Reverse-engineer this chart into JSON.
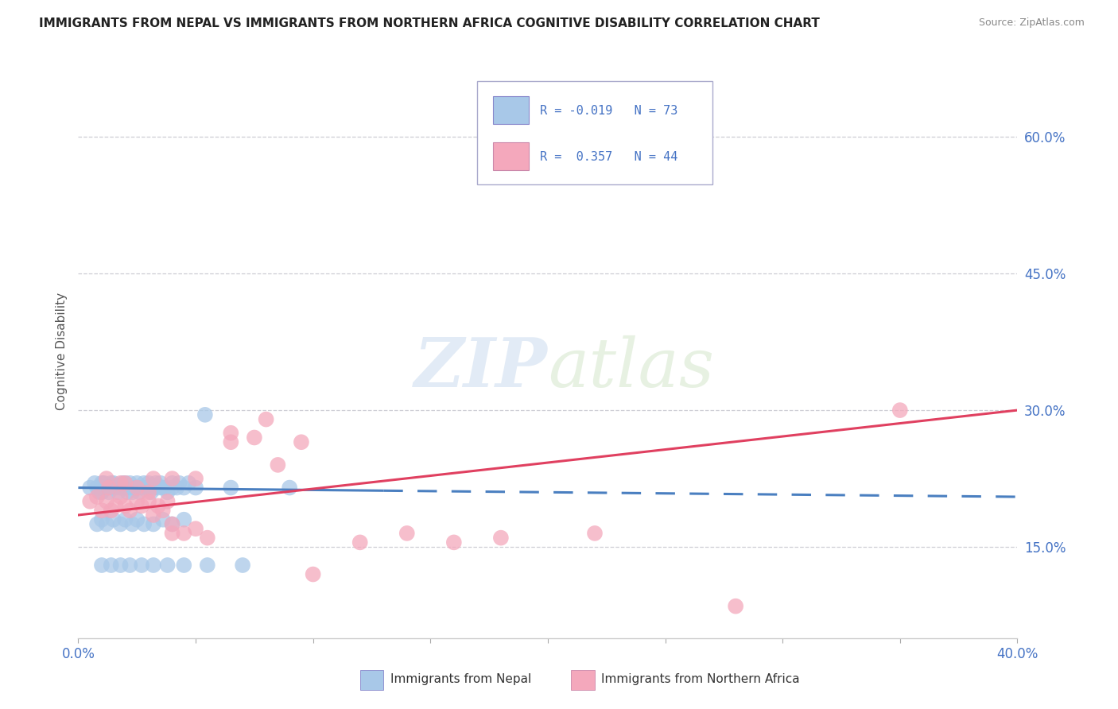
{
  "title": "IMMIGRANTS FROM NEPAL VS IMMIGRANTS FROM NORTHERN AFRICA COGNITIVE DISABILITY CORRELATION CHART",
  "source": "Source: ZipAtlas.com",
  "ylabel": "Cognitive Disability",
  "ytick_labels": [
    "60.0%",
    "45.0%",
    "30.0%",
    "15.0%"
  ],
  "ytick_values": [
    0.6,
    0.45,
    0.3,
    0.15
  ],
  "xlim": [
    0.0,
    0.4
  ],
  "ylim": [
    0.05,
    0.68
  ],
  "legend_line1": "R = -0.019   N = 73",
  "legend_line2": "R =  0.357   N = 44",
  "legend_label_nepal": "Immigrants from Nepal",
  "legend_label_n_africa": "Immigrants from Northern Africa",
  "nepal_color": "#a8c8e8",
  "n_africa_color": "#f4a8bc",
  "nepal_line_color": "#4a7fc0",
  "n_africa_line_color": "#e04060",
  "legend_text_color": "#4472c4",
  "ytick_color": "#4472c4",
  "background_color": "#ffffff",
  "grid_color": "#c8c8d0",
  "nepal_x": [
    0.005,
    0.007,
    0.008,
    0.009,
    0.01,
    0.01,
    0.01,
    0.011,
    0.012,
    0.013,
    0.014,
    0.015,
    0.015,
    0.016,
    0.017,
    0.018,
    0.019,
    0.02,
    0.02,
    0.021,
    0.022,
    0.022,
    0.023,
    0.024,
    0.025,
    0.025,
    0.026,
    0.027,
    0.028,
    0.029,
    0.03,
    0.03,
    0.031,
    0.032,
    0.033,
    0.034,
    0.035,
    0.036,
    0.037,
    0.038,
    0.04,
    0.04,
    0.042,
    0.043,
    0.045,
    0.047,
    0.05,
    0.054,
    0.065,
    0.09,
    0.008,
    0.01,
    0.012,
    0.015,
    0.018,
    0.02,
    0.023,
    0.025,
    0.028,
    0.032,
    0.036,
    0.04,
    0.045,
    0.01,
    0.014,
    0.018,
    0.022,
    0.027,
    0.032,
    0.038,
    0.045,
    0.055,
    0.07
  ],
  "nepal_y": [
    0.215,
    0.22,
    0.215,
    0.21,
    0.22,
    0.21,
    0.215,
    0.22,
    0.215,
    0.21,
    0.22,
    0.215,
    0.22,
    0.215,
    0.21,
    0.215,
    0.22,
    0.22,
    0.215,
    0.21,
    0.22,
    0.215,
    0.21,
    0.215,
    0.22,
    0.215,
    0.21,
    0.215,
    0.22,
    0.215,
    0.22,
    0.215,
    0.21,
    0.215,
    0.22,
    0.215,
    0.22,
    0.215,
    0.215,
    0.21,
    0.22,
    0.215,
    0.215,
    0.22,
    0.215,
    0.22,
    0.215,
    0.295,
    0.215,
    0.215,
    0.175,
    0.18,
    0.175,
    0.18,
    0.175,
    0.18,
    0.175,
    0.18,
    0.175,
    0.175,
    0.18,
    0.175,
    0.18,
    0.13,
    0.13,
    0.13,
    0.13,
    0.13,
    0.13,
    0.13,
    0.13,
    0.13,
    0.13
  ],
  "n_africa_x": [
    0.005,
    0.008,
    0.01,
    0.012,
    0.014,
    0.016,
    0.018,
    0.02,
    0.022,
    0.025,
    0.027,
    0.03,
    0.032,
    0.034,
    0.036,
    0.038,
    0.04,
    0.045,
    0.05,
    0.055,
    0.065,
    0.075,
    0.085,
    0.095,
    0.012,
    0.018,
    0.025,
    0.032,
    0.04,
    0.05,
    0.065,
    0.08,
    0.1,
    0.12,
    0.14,
    0.16,
    0.18,
    0.22,
    0.28,
    0.35,
    0.013,
    0.02,
    0.03,
    0.04
  ],
  "n_africa_y": [
    0.2,
    0.205,
    0.19,
    0.2,
    0.19,
    0.195,
    0.205,
    0.195,
    0.19,
    0.2,
    0.195,
    0.2,
    0.185,
    0.195,
    0.19,
    0.2,
    0.175,
    0.165,
    0.17,
    0.16,
    0.275,
    0.27,
    0.24,
    0.265,
    0.225,
    0.22,
    0.215,
    0.225,
    0.225,
    0.225,
    0.265,
    0.29,
    0.12,
    0.155,
    0.165,
    0.155,
    0.16,
    0.165,
    0.085,
    0.3,
    0.215,
    0.22,
    0.21,
    0.165
  ]
}
